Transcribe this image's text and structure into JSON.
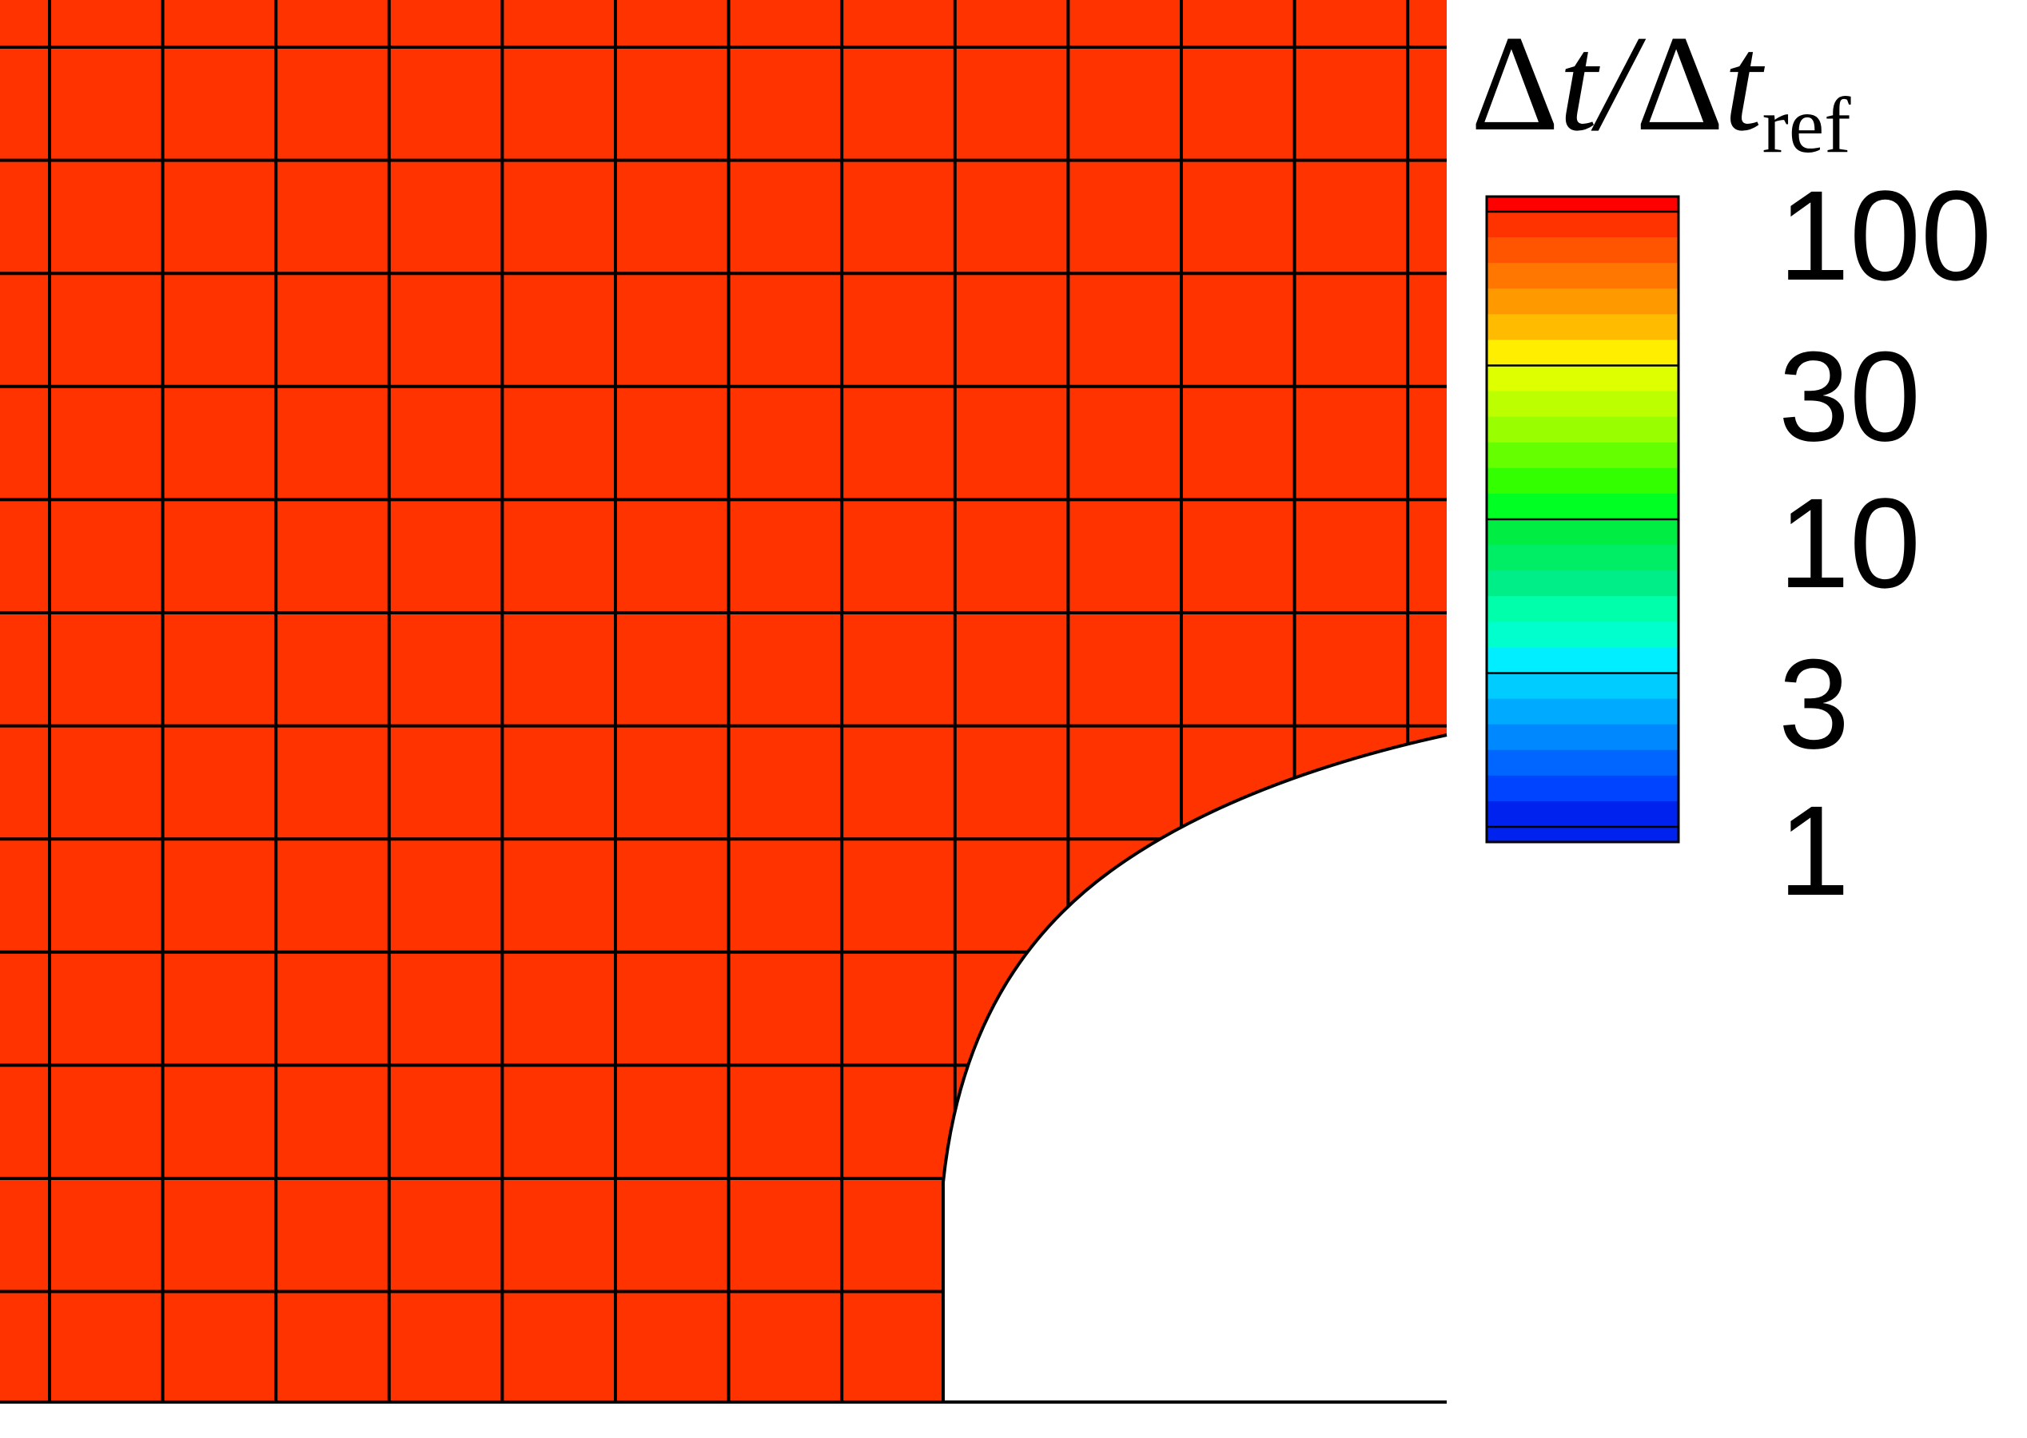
{
  "chart_data": {
    "type": "heatmap",
    "title": "",
    "field": "time-step ratio on a structured mesh around a circular hole",
    "uniform_value": 100,
    "fill_color": "#FF3300",
    "mesh_line_color": "#000000",
    "legend": {
      "title": {
        "delta1": "Δ",
        "t1": "t",
        "slash": "/",
        "delta2": "Δ",
        "t2": "t",
        "sub": "ref"
      },
      "scale": "log",
      "range": [
        1,
        100
      ],
      "ticks": [
        {
          "value": 100,
          "label": "100"
        },
        {
          "value": 30,
          "label": "30"
        },
        {
          "value": 10,
          "label": "10"
        },
        {
          "value": 3,
          "label": "3"
        },
        {
          "value": 1,
          "label": "1"
        }
      ],
      "bands_top_to_bottom": [
        "#FF3300",
        "#FF5500",
        "#FF7700",
        "#FF9900",
        "#FFBB00",
        "#FFEE00",
        "#DDFF00",
        "#BBFF00",
        "#99FF00",
        "#66FF00",
        "#33FF00",
        "#00FF22",
        "#00EE44",
        "#00EE66",
        "#00EE88",
        "#00FFAA",
        "#00FFCC",
        "#00EEFF",
        "#00CCFF",
        "#00AAFF",
        "#0088FF",
        "#0066FF",
        "#0044FF",
        "#0022EE"
      ],
      "top_cap_color": "#FF0000",
      "bottom_cap_color": "#0022EE"
    }
  }
}
